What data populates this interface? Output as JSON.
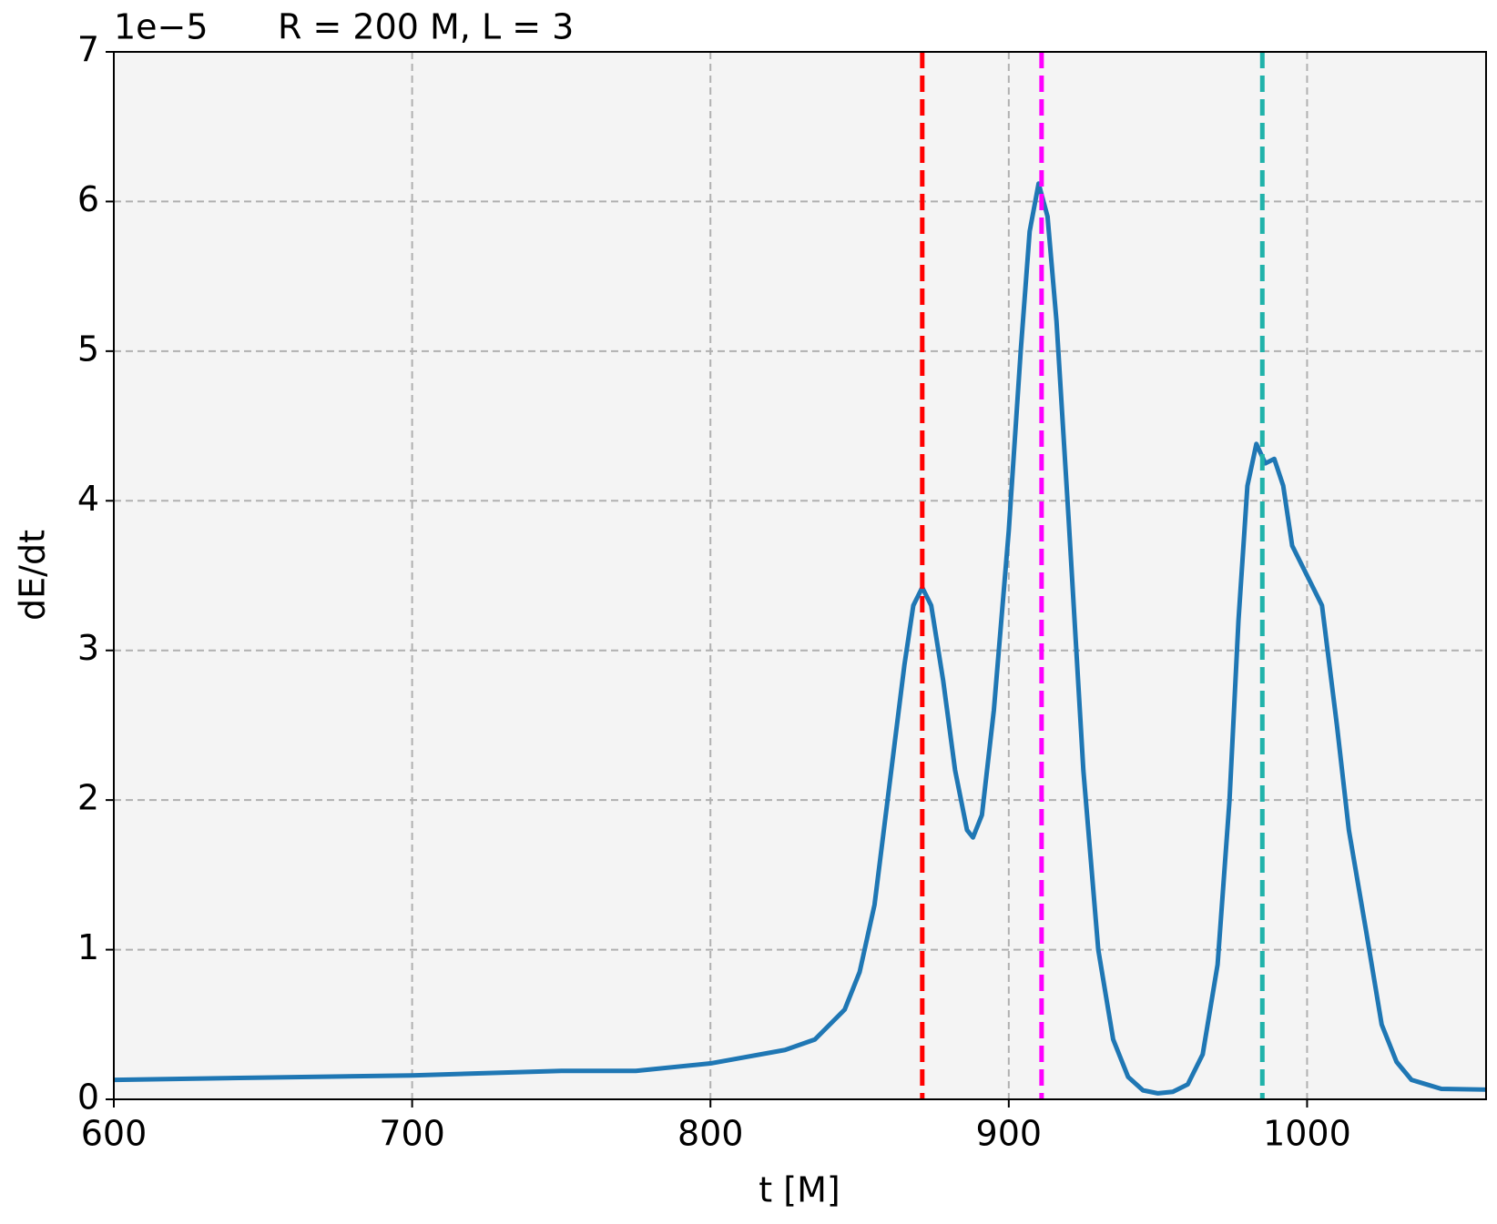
{
  "chart_data": {
    "type": "line",
    "title": "R = 200 M, L = 3",
    "offset_text": "1e−5",
    "x_label": "t [M]",
    "y_label": "dE/dt",
    "xlim": [
      600,
      1060
    ],
    "ylim": [
      0,
      7
    ],
    "xticks": [
      600,
      700,
      800,
      900,
      1000
    ],
    "yticks": [
      0,
      1,
      2,
      3,
      4,
      5,
      6,
      7
    ],
    "grid": true,
    "series": [
      {
        "name": "dE/dt",
        "color": "#1f77b4",
        "x": [
          600,
          650,
          700,
          750,
          775,
          800,
          825,
          835,
          845,
          850,
          855,
          860,
          865,
          868,
          871,
          874,
          878,
          882,
          886,
          888,
          891,
          895,
          900,
          904,
          907,
          910,
          913,
          916,
          920,
          925,
          930,
          935,
          940,
          945,
          950,
          955,
          960,
          965,
          970,
          974,
          977,
          980,
          983,
          986,
          989,
          992,
          995,
          1000,
          1005,
          1010,
          1014,
          1020,
          1025,
          1030,
          1035,
          1040,
          1045,
          1060
        ],
        "values": [
          0.13,
          0.145,
          0.16,
          0.19,
          0.19,
          0.24,
          0.33,
          0.4,
          0.6,
          0.85,
          1.3,
          2.1,
          2.9,
          3.3,
          3.42,
          3.3,
          2.8,
          2.2,
          1.8,
          1.75,
          1.9,
          2.6,
          3.8,
          5.0,
          5.8,
          6.12,
          5.9,
          5.2,
          3.9,
          2.2,
          1.0,
          0.4,
          0.15,
          0.06,
          0.04,
          0.05,
          0.1,
          0.3,
          0.9,
          2.0,
          3.2,
          4.1,
          4.38,
          4.25,
          4.28,
          4.1,
          3.7,
          3.5,
          3.3,
          2.5,
          1.8,
          1.1,
          0.5,
          0.25,
          0.13,
          0.1,
          0.07,
          0.065
        ]
      }
    ],
    "vlines": [
      {
        "x": 871,
        "color": "#ff0000"
      },
      {
        "x": 911,
        "color": "#ff00ff"
      },
      {
        "x": 985,
        "color": "#20b2aa"
      }
    ]
  }
}
